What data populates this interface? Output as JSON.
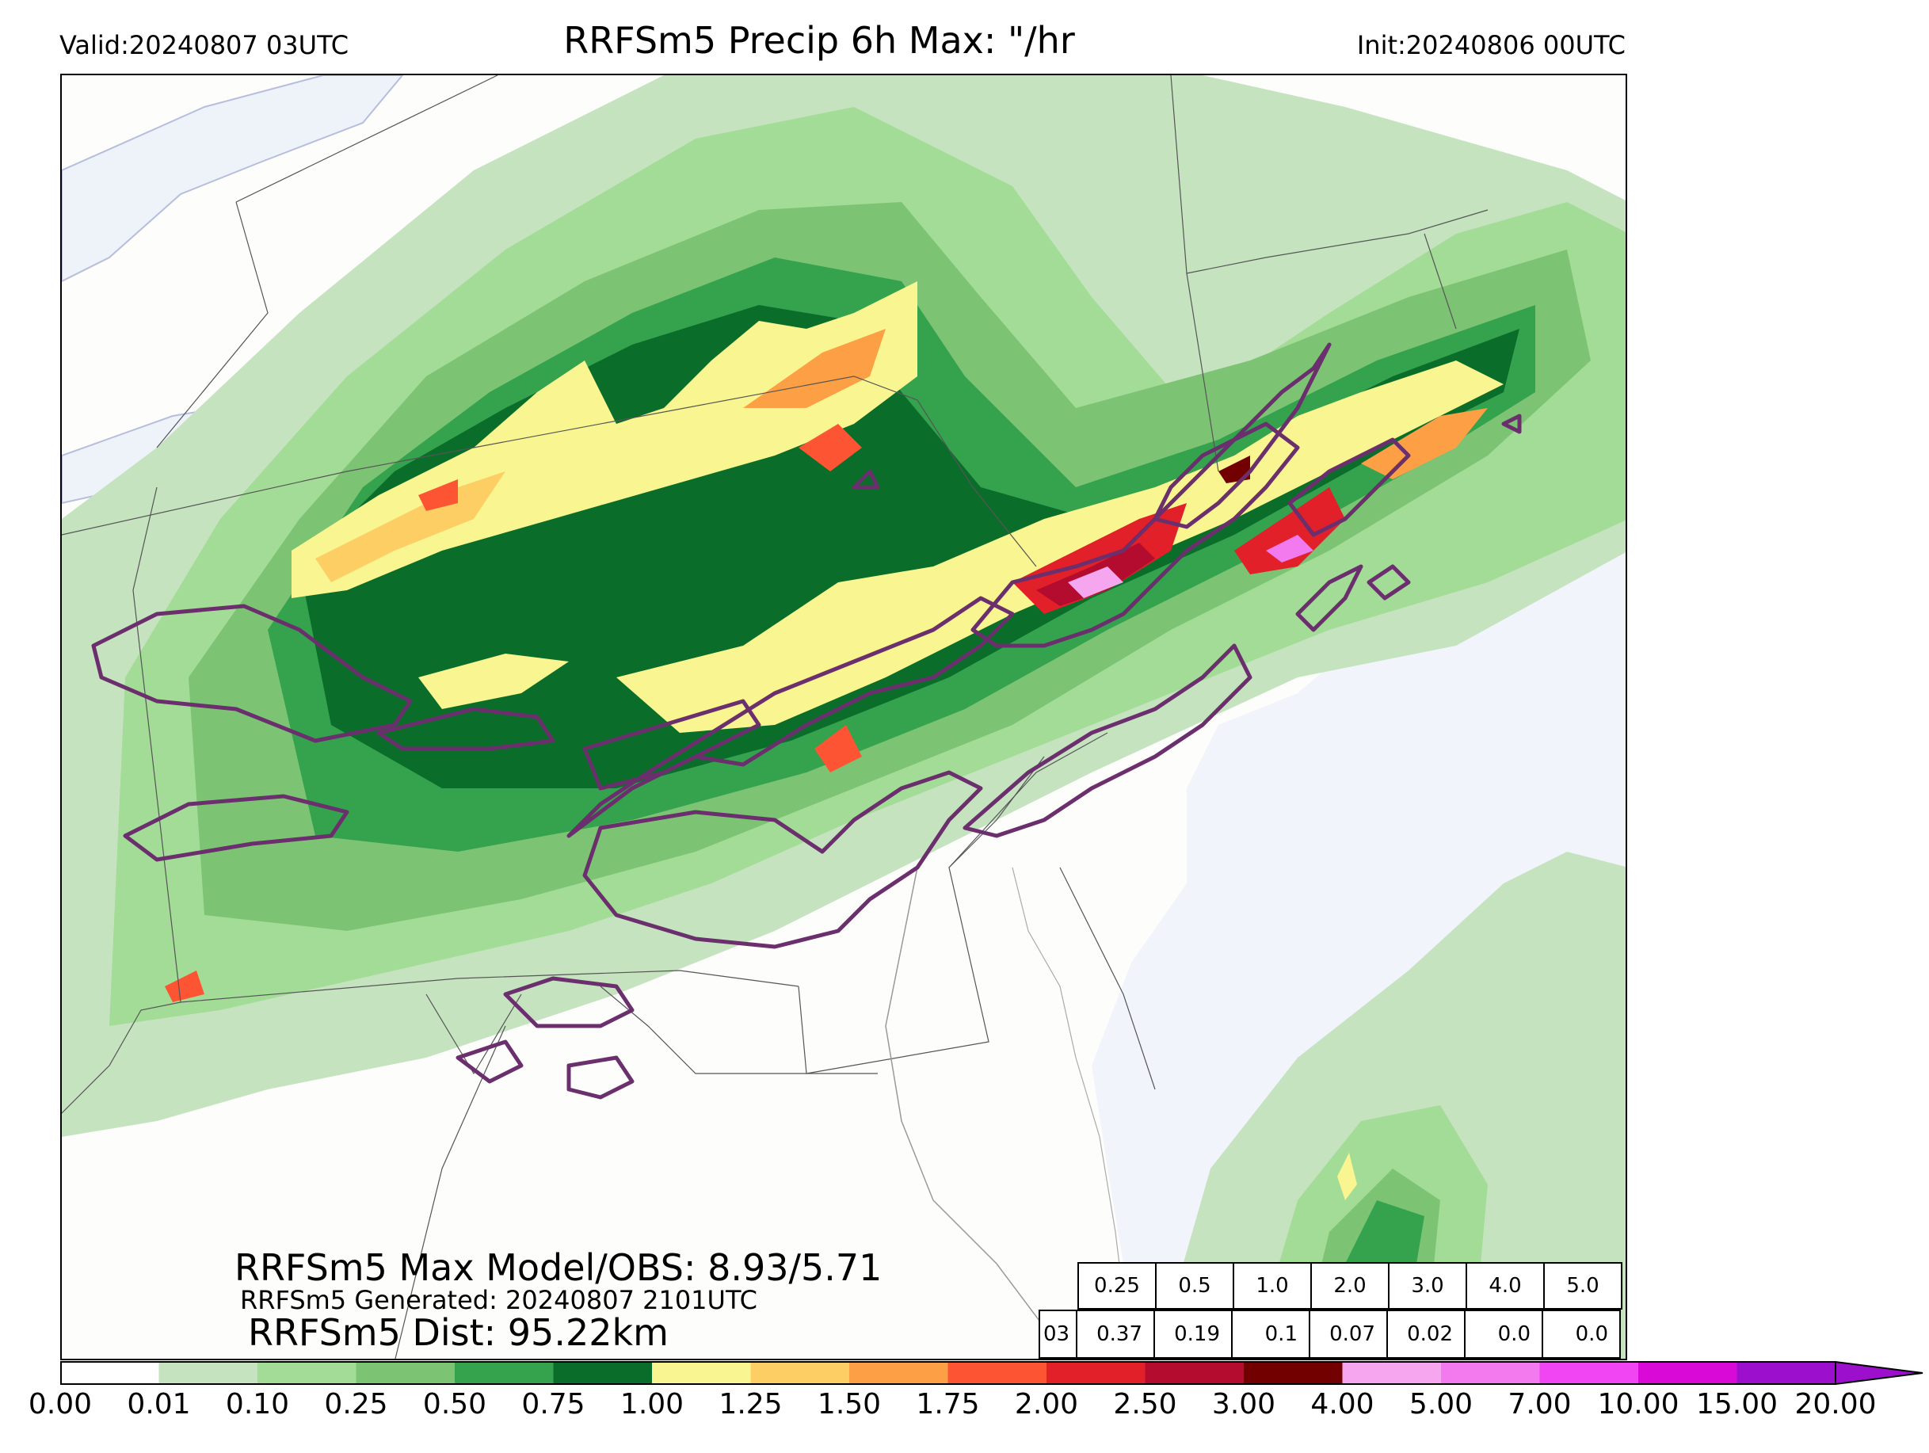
{
  "header": {
    "valid": "Valid:20240807 03UTC",
    "title": "RRFSm5 Precip 6h Max: \"/hr",
    "init": "Init:20240806 00UTC"
  },
  "stats": {
    "max_model_obs": "RRFSm5 Max Model/OBS: 8.93/5.71",
    "generated": "RRFSm5 Generated: 20240807 2101UTC",
    "distance": "RRFSm5 Dist: 95.22km"
  },
  "threshold_table": {
    "thresholds": [
      "0.25",
      "0.5",
      "1.0",
      "2.0",
      "3.0",
      "4.0",
      "5.0"
    ],
    "row_label": "03",
    "values": [
      "0.37",
      "0.19",
      "0.1",
      "0.07",
      "0.02",
      "0.0",
      "0.0"
    ]
  },
  "colorbar": {
    "ticks": [
      "0.00",
      "0.01",
      "0.10",
      "0.25",
      "0.50",
      "0.75",
      "1.00",
      "1.25",
      "1.50",
      "1.75",
      "2.00",
      "2.50",
      "3.00",
      "4.00",
      "5.00",
      "7.00",
      "10.00",
      "15.00",
      "20.00"
    ],
    "colors": [
      "#ffffff",
      "#c6e3c0",
      "#a3dc96",
      "#7cc474",
      "#35a24e",
      "#0a6e2a",
      "#f9f590",
      "#fdce63",
      "#fc9f45",
      "#fd5433",
      "#e1202a",
      "#b40c2e",
      "#720000",
      "#f6a6ef",
      "#f279ee",
      "#f145f3",
      "#d90ad8",
      "#9c10cd"
    ]
  },
  "map_colors": {
    "land": "#fdfdfc",
    "water": "#f1f5fb",
    "obs_contour": "#6b2f6e",
    "border": "#555555"
  }
}
